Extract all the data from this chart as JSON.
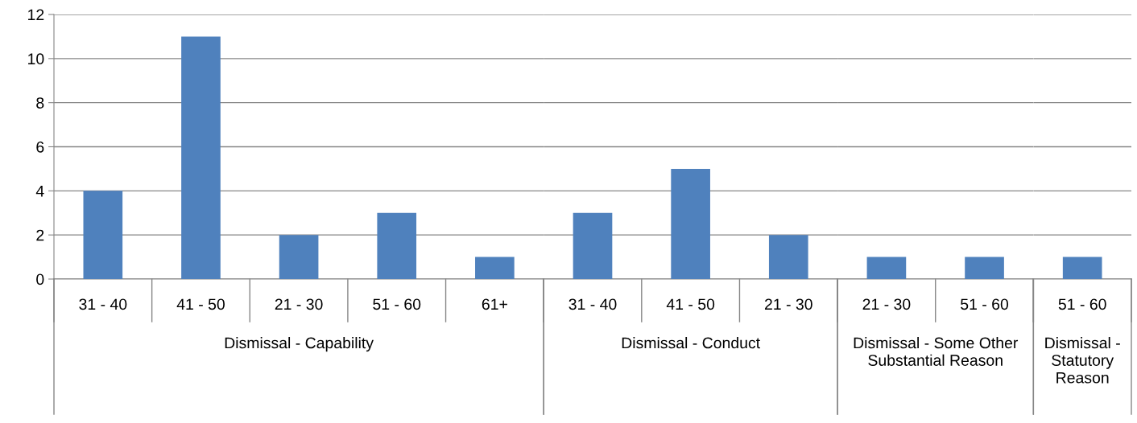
{
  "chart_data": [
    {
      "type": "bar",
      "categories": [
        "31 - 40",
        "41 - 50",
        "21 - 30",
        "51 - 60",
        "61+"
      ],
      "values": [
        4,
        11,
        2,
        3,
        1
      ],
      "color": "#4f81bd",
      "xlabel": "Dismissal - Capability",
      "ylim": [
        0,
        12
      ],
      "yticks": [
        0,
        2,
        4,
        6,
        8,
        10,
        12
      ],
      "grid": "y"
    },
    {
      "type": "bar",
      "categories": [
        "31 - 40",
        "41 - 50",
        "21 - 30"
      ],
      "values": [
        3,
        5,
        2
      ],
      "color": "#4f81bd",
      "xlabel": "Dismissal - Conduct",
      "ylim": [
        0,
        12
      ],
      "yticks": [
        0,
        2,
        4,
        6,
        8,
        10,
        12
      ],
      "grid": "y",
      "tick_labels": "x"
    },
    {
      "type": "bar",
      "categories": [
        "21 - 30",
        "51 - 60"
      ],
      "values": [
        1,
        1
      ],
      "color": "#4f81bd",
      "xlabel": "Dismissal - Some Other Substantial Reason",
      "ylim": [
        0,
        12
      ],
      "yticks": [
        0,
        2,
        4,
        6,
        8,
        10,
        12
      ],
      "grid": "y",
      "tick_labels": "x"
    },
    {
      "type": "bar",
      "categories": [
        "51 - 60"
      ],
      "values": [
        1
      ],
      "color": "#4f81bd",
      "xlabel": "Dismissal - Statutory Reason",
      "ylim": [
        0,
        12
      ],
      "yticks": [
        0,
        2,
        4,
        6,
        8,
        10,
        12
      ],
      "grid": "y",
      "tick_labels": "x"
    }
  ]
}
